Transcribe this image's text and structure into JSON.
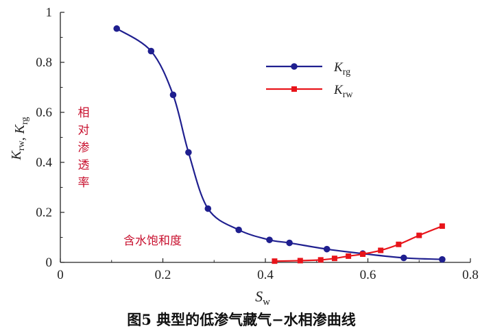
{
  "chart_data": {
    "type": "line",
    "title": "",
    "caption": "图5 典型的低渗气藏气−水相渗曲线",
    "xlabel": {
      "main": "S",
      "sub": "w"
    },
    "ylabel": {
      "parts": [
        {
          "main": "K",
          "sub": "rw"
        },
        {
          "sep": ", "
        },
        {
          "main": "K",
          "sub": "rg"
        }
      ]
    },
    "xlim": [
      0,
      0.8
    ],
    "ylim": [
      0,
      1
    ],
    "x_ticks": [
      "0",
      "0.2",
      "0.4",
      "0.6",
      "0.8"
    ],
    "y_ticks": [
      "0",
      "0.2",
      "0.4",
      "0.6",
      "0.8",
      "1"
    ],
    "x_tick_values": [
      0,
      0.2,
      0.4,
      0.6,
      0.8
    ],
    "y_tick_values": [
      0,
      0.2,
      0.4,
      0.6,
      0.8,
      1
    ],
    "grid": false,
    "legend_position": "top-right",
    "series": [
      {
        "name": "Krg",
        "legend": {
          "main": "K",
          "sub": "rg"
        },
        "color": "#1f1f8f",
        "marker": "circle",
        "x": [
          0.11,
          0.177,
          0.22,
          0.25,
          0.288,
          0.348,
          0.408,
          0.447,
          0.52,
          0.59,
          0.67,
          0.745
        ],
        "y": [
          0.935,
          0.845,
          0.67,
          0.44,
          0.215,
          0.13,
          0.09,
          0.078,
          0.053,
          0.035,
          0.018,
          0.012
        ]
      },
      {
        "name": "Krw",
        "legend": {
          "main": "K",
          "sub": "rw"
        },
        "color": "#e8141a",
        "marker": "square",
        "x": [
          0.418,
          0.468,
          0.508,
          0.535,
          0.562,
          0.59,
          0.625,
          0.66,
          0.7,
          0.745
        ],
        "y": [
          0.005,
          0.007,
          0.01,
          0.016,
          0.025,
          0.033,
          0.048,
          0.072,
          0.108,
          0.145
        ]
      }
    ],
    "annotations": {
      "ylabel_cn": "相对渗透率",
      "xlabel_cn": "含水饱和度"
    }
  }
}
